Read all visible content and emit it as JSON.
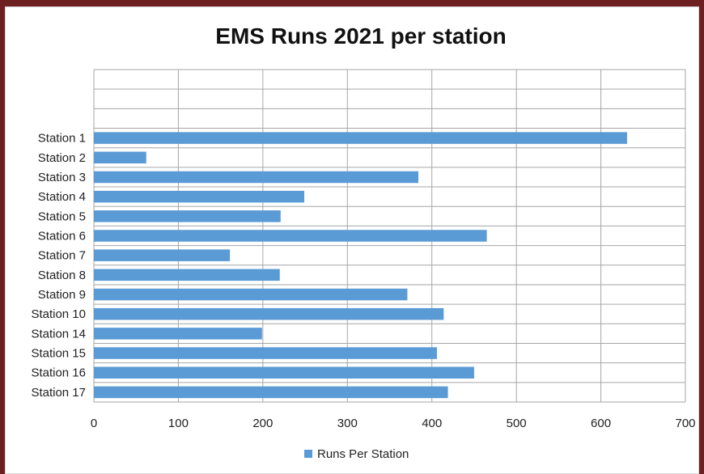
{
  "chart_data": {
    "type": "bar",
    "orientation": "horizontal",
    "title": "EMS Runs 2021 per station",
    "categories": [
      "Station 1",
      "Station 2",
      "Station 3",
      "Station 4",
      "Station 5",
      "Station 6",
      "Station 7",
      "Station 8",
      "Station 9",
      "Station 10",
      "Station 14",
      "Station 15",
      "Station 16",
      "Station 17"
    ],
    "series": [
      {
        "name": "Runs Per Station",
        "color": "#5b9bd5",
        "values": [
          631,
          62,
          384,
          249,
          221,
          465,
          161,
          220,
          371,
          414,
          199,
          406,
          450,
          419
        ]
      }
    ],
    "xlim": [
      0,
      700
    ],
    "xticks": [
      "0",
      "100",
      "200",
      "300",
      "400",
      "500",
      "600",
      "700"
    ],
    "grid": true,
    "legend": "bottom"
  }
}
